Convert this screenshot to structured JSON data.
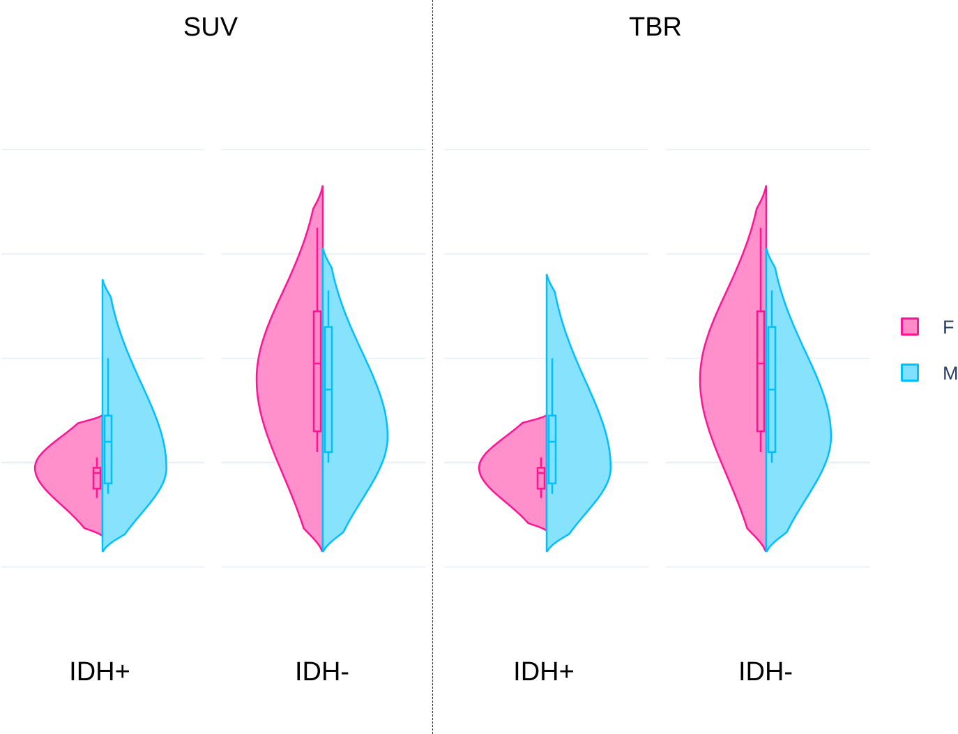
{
  "chart_data": {
    "type": "violin",
    "panels": [
      {
        "title": "SUV",
        "categories": [
          {
            "label": "IDH+",
            "series": {
              "F": {
                "min": 1.3,
                "max": 2.45,
                "density_peak": 1.95,
                "box": {
                  "q1": 1.75,
                  "median": 1.9,
                  "q3": 1.95,
                  "whisker_low": 1.66,
                  "whisker_high": 2.05
                }
              },
              "M": {
                "min": 1.15,
                "max": 3.75,
                "density_peak": 1.95,
                "box": {
                  "q1": 1.8,
                  "median": 2.2,
                  "q3": 2.45,
                  "whisker_low": 1.7,
                  "whisker_high": 3.0
                }
              }
            }
          },
          {
            "label": "IDH-",
            "series": {
              "F": {
                "min": 1.15,
                "max": 4.65,
                "density_peak": 2.8,
                "box": {
                  "q1": 2.3,
                  "median": 2.95,
                  "q3": 3.45,
                  "whisker_low": 2.1,
                  "whisker_high": 4.25
                }
              },
              "M": {
                "min": 1.15,
                "max": 4.05,
                "density_peak": 2.25,
                "box": {
                  "q1": 2.1,
                  "median": 2.7,
                  "q3": 3.3,
                  "whisker_low": 2.0,
                  "whisker_high": 3.65
                }
              }
            }
          }
        ]
      },
      {
        "title": "TBR",
        "categories": [
          {
            "label": "IDH+",
            "series": {
              "F": {
                "min": 1.35,
                "max": 2.45,
                "density_peak": 1.95,
                "box": {
                  "q1": 1.75,
                  "median": 1.9,
                  "q3": 1.95,
                  "whisker_low": 1.66,
                  "whisker_high": 2.05
                }
              },
              "M": {
                "min": 1.15,
                "max": 3.8,
                "density_peak": 1.95,
                "box": {
                  "q1": 1.8,
                  "median": 2.2,
                  "q3": 2.45,
                  "whisker_low": 1.7,
                  "whisker_high": 3.0
                }
              }
            }
          },
          {
            "label": "IDH-",
            "series": {
              "F": {
                "min": 1.15,
                "max": 4.65,
                "density_peak": 2.8,
                "box": {
                  "q1": 2.3,
                  "median": 2.95,
                  "q3": 3.45,
                  "whisker_low": 2.1,
                  "whisker_high": 4.25
                }
              },
              "M": {
                "min": 1.15,
                "max": 4.05,
                "density_peak": 2.25,
                "box": {
                  "q1": 2.1,
                  "median": 2.7,
                  "q3": 3.3,
                  "whisker_low": 2.0,
                  "whisker_high": 3.65
                }
              }
            }
          }
        ]
      }
    ],
    "series": [
      {
        "name": "F",
        "color": "#ff1493",
        "fill": "#ff8ac8"
      },
      {
        "name": "M",
        "color": "#00bfff",
        "fill": "#80e0fd"
      }
    ],
    "gridlines": [
      1,
      2,
      3,
      4,
      5
    ],
    "ylim": [
      0.1,
      6.1
    ],
    "legend": "right",
    "grid": true
  },
  "legend": {
    "items": [
      {
        "label": "F"
      },
      {
        "label": "M"
      }
    ]
  }
}
